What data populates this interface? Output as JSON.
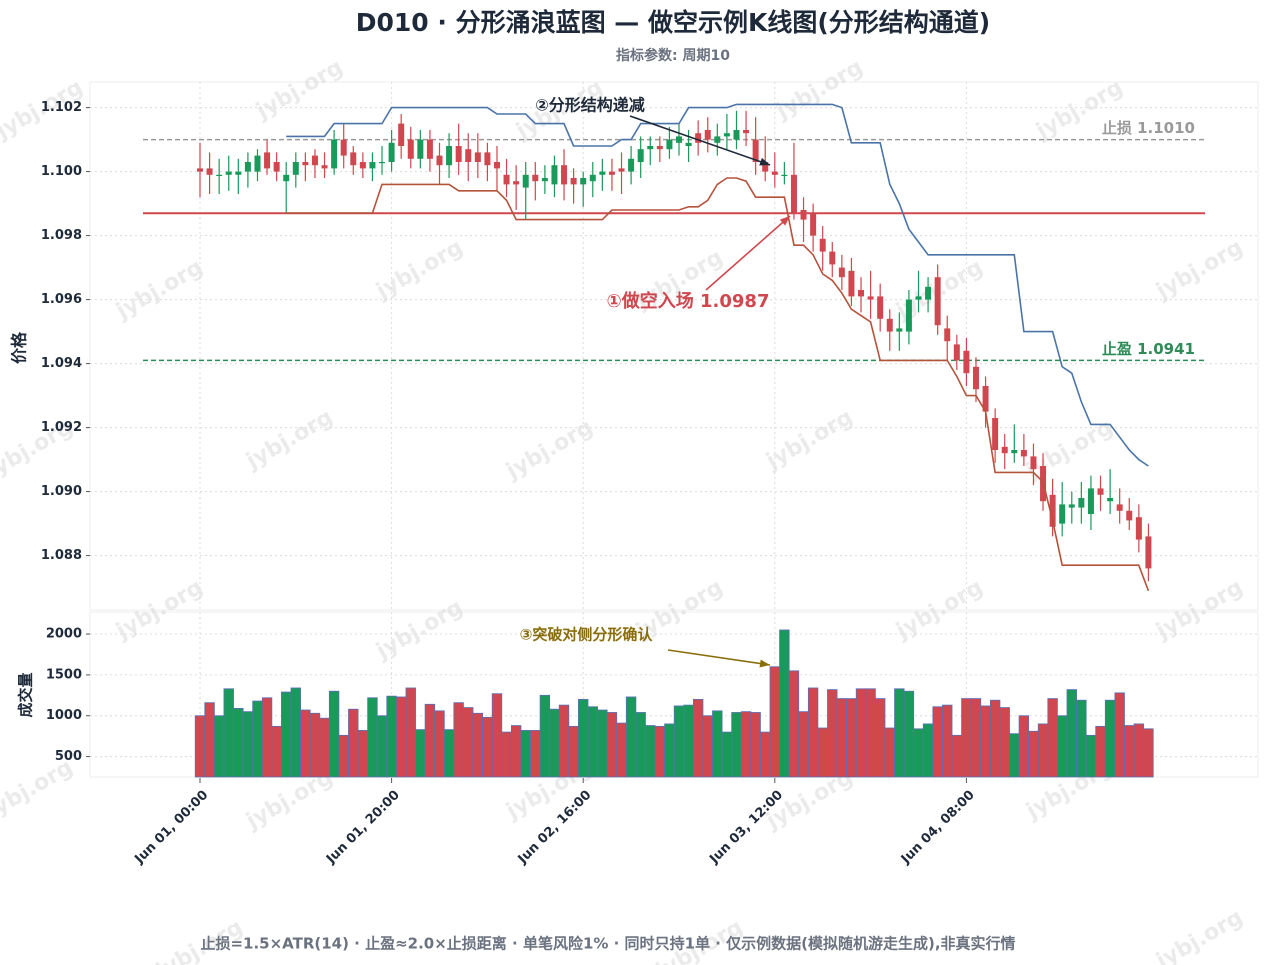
{
  "chart_data": {
    "type": "candlestick",
    "title": "D010 · 分形涌浪蓝图 — 做空示例K线图(分形结构通道)",
    "subtitle": "指标参数: 周期10",
    "ylabel": "价格",
    "volume_label": "成交量",
    "footer": "止损=1.5×ATR(14) · 止盈≈2.0×止损距离 · 单笔风险1% · 同时只持1单 · 仅示例数据(模拟随机游走生成),非真实行情",
    "watermark": "jybj.org",
    "up_color": "#1a9a5a",
    "down_color": "#d0474f",
    "grid": true,
    "x": [
      "Jun 01, 00:00",
      null,
      null,
      null,
      null,
      null,
      null,
      null,
      null,
      null,
      null,
      null,
      null,
      null,
      null,
      null,
      null,
      null,
      null,
      null,
      "Jun 01, 20:00",
      null,
      null,
      null,
      null,
      null,
      null,
      null,
      null,
      null,
      null,
      null,
      null,
      null,
      null,
      null,
      null,
      null,
      null,
      null,
      "Jun 02, 16:00",
      null,
      null,
      null,
      null,
      null,
      null,
      null,
      null,
      null,
      null,
      null,
      null,
      null,
      null,
      null,
      null,
      null,
      null,
      null,
      "Jun 03, 12:00",
      null,
      null,
      null,
      null,
      null,
      null,
      null,
      null,
      null,
      null,
      null,
      null,
      null,
      null,
      null,
      null,
      null,
      null,
      null,
      "Jun 04, 08:00",
      null,
      null,
      null,
      null,
      null,
      null,
      null,
      null,
      null,
      null,
      null,
      null,
      null,
      null,
      null,
      null,
      null,
      null,
      null
    ],
    "open": [
      1.1001,
      1.1001,
      1.0999,
      1.0999,
      1.0999,
      1.1,
      1.1,
      1.1006,
      1.1003,
      1.0997,
      1.0999,
      1.1003,
      1.1005,
      1.1002,
      1.1001,
      1.101,
      1.1006,
      1.1003,
      1.1001,
      1.1003,
      1.1003,
      1.1015,
      1.101,
      1.1004,
      1.101,
      1.1005,
      1.1002,
      1.1008,
      1.1007,
      1.1006,
      1.1006,
      1.1003,
      1.0999,
      1.0997,
      1.0995,
      1.0999,
      1.0997,
      1.0996,
      1.1002,
      1.0998,
      1.0996,
      1.0997,
      1.0999,
      1.1,
      1.1001,
      1.1,
      1.1003,
      1.1007,
      1.1008,
      1.1007,
      1.1009,
      1.1008,
      1.1012,
      1.1013,
      1.1009,
      1.1011,
      1.101,
      1.1013,
      1.101,
      1.1003,
      1.1,
      1.0999,
      1.0999,
      1.0988,
      1.0987,
      1.0979,
      1.0975,
      1.097,
      1.0969,
      1.0963,
      1.0961,
      1.0961,
      1.0954,
      1.095,
      1.095,
      1.096,
      1.096,
      1.0967,
      1.0951,
      1.0946,
      1.0944,
      1.0939,
      1.0933,
      1.0923,
      1.0914,
      1.0912,
      1.0913,
      1.0911,
      1.0908,
      1.0899,
      1.089,
      1.0895,
      1.0895,
      1.0893,
      1.0901,
      1.0897,
      1.0896,
      1.0894,
      1.0892,
      1.0886
    ],
    "close": [
      1.1,
      1.0999,
      1.0999,
      1.1,
      1.1,
      1.1003,
      1.1005,
      1.1001,
      1.1,
      1.0999,
      1.1003,
      1.1002,
      1.1002,
      1.1001,
      1.101,
      1.1005,
      1.1002,
      1.1001,
      1.1003,
      1.1003,
      1.1009,
      1.1008,
      1.1004,
      1.101,
      1.1004,
      1.1002,
      1.1008,
      1.1003,
      1.1003,
      1.1003,
      1.1002,
      1.1001,
      1.0996,
      1.0996,
      1.0999,
      1.0997,
      1.0998,
      1.1002,
      1.0996,
      1.0996,
      1.0998,
      1.0999,
      1.1,
      1.0999,
      1.1,
      1.1004,
      1.1007,
      1.1008,
      1.1007,
      1.101,
      1.1011,
      1.1009,
      1.1009,
      1.101,
      1.1011,
      1.1012,
      1.1013,
      1.1012,
      1.1003,
      1.1,
      1.0999,
      1.0999,
      1.0987,
      1.0985,
      1.098,
      1.0975,
      1.0971,
      1.0967,
      1.0961,
      1.0961,
      1.096,
      1.0954,
      1.095,
      1.0951,
      1.096,
      1.0961,
      1.0964,
      1.0952,
      1.0947,
      1.0941,
      1.0937,
      1.0932,
      1.0925,
      1.0913,
      1.0912,
      1.0913,
      1.0911,
      1.0907,
      1.0897,
      1.0889,
      1.0896,
      1.0896,
      1.0898,
      1.0901,
      1.0899,
      1.0898,
      1.0894,
      1.0891,
      1.0885,
      1.0876
    ],
    "high": [
      1.1009,
      1.1006,
      1.1004,
      1.1005,
      1.1004,
      1.1006,
      1.1007,
      1.101,
      1.1006,
      1.1003,
      1.1006,
      1.1006,
      1.1007,
      1.1006,
      1.1013,
      1.1015,
      1.1008,
      1.1006,
      1.1006,
      1.1008,
      1.1013,
      1.1018,
      1.1014,
      1.1013,
      1.1013,
      1.1009,
      1.1012,
      1.1015,
      1.1012,
      1.1012,
      1.1009,
      1.1008,
      1.1004,
      1.1002,
      1.1003,
      1.1003,
      1.1002,
      1.1005,
      1.1007,
      1.1001,
      1.1,
      1.1003,
      1.1004,
      1.1004,
      1.1006,
      1.1008,
      1.1011,
      1.1011,
      1.1011,
      1.1014,
      1.1015,
      1.1013,
      1.1016,
      1.1017,
      1.1015,
      1.1018,
      1.1019,
      1.1019,
      1.1017,
      1.1011,
      1.1006,
      1.1003,
      1.1009,
      1.0992,
      1.099,
      1.0983,
      1.0978,
      1.0974,
      1.0973,
      1.0967,
      1.0969,
      1.0965,
      1.0957,
      1.0956,
      1.0963,
      1.0969,
      1.0967,
      1.0971,
      1.0955,
      1.0949,
      1.0948,
      1.0942,
      1.0936,
      1.0926,
      1.0918,
      1.0921,
      1.0918,
      1.0915,
      1.0912,
      1.0904,
      1.0903,
      1.09,
      1.0903,
      1.0905,
      1.0905,
      1.0907,
      1.0901,
      1.0898,
      1.0896,
      1.089
    ],
    "low": [
      1.0992,
      1.0993,
      1.0993,
      1.0994,
      1.0993,
      1.0995,
      1.0997,
      1.0999,
      1.0997,
      1.0987,
      1.0995,
      1.0997,
      1.0998,
      1.0998,
      1.0999,
      1.1001,
      1.0999,
      1.0998,
      1.0997,
      1.0999,
      1.1,
      1.1004,
      1.1001,
      1.1001,
      1.1,
      1.0996,
      1.0998,
      1.0999,
      1.0997,
      1.0998,
      1.0997,
      1.0994,
      1.0992,
      1.0988,
      1.0985,
      1.0991,
      1.0993,
      1.0992,
      1.0991,
      1.099,
      1.0989,
      1.0992,
      1.0994,
      1.0994,
      1.0993,
      1.0996,
      1.0998,
      1.1002,
      1.1003,
      1.1004,
      1.1005,
      1.1003,
      1.1005,
      1.1006,
      1.1005,
      1.1007,
      1.1007,
      1.1008,
      1.0999,
      1.0997,
      1.0995,
      1.0996,
      1.0985,
      1.0978,
      1.0975,
      1.0969,
      1.0967,
      1.0963,
      1.0958,
      1.0956,
      1.0954,
      1.095,
      1.0944,
      1.0944,
      1.0946,
      1.0956,
      1.0956,
      1.0949,
      1.0941,
      1.0938,
      1.0933,
      1.0928,
      1.092,
      1.0909,
      1.0907,
      1.0909,
      1.0908,
      1.0902,
      1.0894,
      1.0886,
      1.0886,
      1.089,
      1.089,
      1.0888,
      1.0894,
      1.0893,
      1.089,
      1.0888,
      1.0881,
      1.0872
    ],
    "volume": [
      1000,
      1160,
      1000,
      1330,
      1090,
      1050,
      1180,
      1220,
      870,
      1290,
      1340,
      1070,
      1030,
      970,
      1300,
      760,
      1080,
      820,
      1220,
      1000,
      1240,
      1230,
      1340,
      830,
      1140,
      1060,
      830,
      1160,
      1100,
      1030,
      980,
      1270,
      800,
      880,
      820,
      820,
      1250,
      1080,
      1130,
      870,
      1200,
      1110,
      1070,
      1040,
      910,
      1230,
      1040,
      880,
      870,
      900,
      1120,
      1130,
      1200,
      1000,
      1060,
      800,
      1040,
      1050,
      1040,
      800,
      1600,
      2050,
      1550,
      1050,
      1340,
      850,
      1320,
      1210,
      1210,
      1330,
      1330,
      1210,
      850,
      1330,
      1300,
      840,
      900,
      1110,
      1130,
      760,
      1210,
      1210,
      1120,
      1190,
      1100,
      780,
      1000,
      810,
      900,
      1210,
      1000,
      1320,
      1190,
      760,
      870,
      1190,
      1280,
      880,
      900,
      840
    ],
    "upper_channel": {
      "color": "#4a74a8",
      "values": [
        null,
        null,
        null,
        null,
        null,
        null,
        null,
        null,
        null,
        1.1011,
        1.1011,
        1.1011,
        1.1011,
        1.1011,
        1.1015,
        1.1015,
        1.1015,
        1.1015,
        1.1015,
        1.1015,
        1.102,
        1.102,
        1.102,
        1.102,
        1.102,
        1.102,
        1.102,
        1.102,
        1.102,
        1.102,
        1.102,
        1.1018,
        1.1018,
        1.1018,
        1.1018,
        1.1015,
        1.1015,
        1.1015,
        1.1015,
        1.1008,
        1.1008,
        1.1008,
        1.1008,
        1.1008,
        1.101,
        1.101,
        1.1015,
        1.1015,
        1.1015,
        1.1015,
        1.1015,
        1.102,
        1.102,
        1.102,
        1.102,
        1.102,
        1.1021,
        1.1021,
        1.1021,
        1.1021,
        1.1021,
        1.1021,
        1.1021,
        1.1021,
        1.1021,
        1.1021,
        1.1021,
        1.102,
        1.1009,
        1.1009,
        1.1009,
        1.1009,
        1.0996,
        1.099,
        1.0982,
        1.0978,
        1.0974,
        1.0974,
        1.0974,
        1.0974,
        1.0974,
        1.0974,
        1.0974,
        1.0974,
        1.0974,
        1.0974,
        1.095,
        1.095,
        1.095,
        1.095,
        1.0939,
        1.0937,
        1.0928,
        1.0921,
        1.0921,
        1.0921,
        1.0917,
        1.0913,
        1.091,
        1.0908
      ]
    },
    "lower_channel": {
      "color": "#b5523b",
      "values": [
        null,
        null,
        null,
        null,
        null,
        null,
        null,
        null,
        null,
        1.0987,
        1.0987,
        1.0987,
        1.0987,
        1.0987,
        1.0987,
        1.0987,
        1.0987,
        1.0987,
        1.0987,
        1.0996,
        1.0996,
        1.0996,
        1.0996,
        1.0996,
        1.0996,
        1.0996,
        1.0996,
        1.0994,
        1.0994,
        1.0994,
        1.0994,
        1.0994,
        1.0991,
        1.0985,
        1.0985,
        1.0985,
        1.0985,
        1.0985,
        1.0985,
        1.0985,
        1.0985,
        1.0985,
        1.0985,
        1.0988,
        1.0988,
        1.0988,
        1.0988,
        1.0988,
        1.0988,
        1.0988,
        1.0988,
        1.0989,
        1.0989,
        1.0991,
        1.0996,
        1.0998,
        1.0998,
        1.0997,
        1.0992,
        1.0992,
        1.0992,
        1.0992,
        1.0977,
        1.0977,
        1.0974,
        1.0968,
        1.0966,
        1.0962,
        1.0957,
        1.0955,
        1.0953,
        1.0941,
        1.0941,
        1.0941,
        1.0941,
        1.0941,
        1.0941,
        1.0941,
        1.0941,
        1.0936,
        1.093,
        1.093,
        1.0925,
        1.0906,
        1.0906,
        1.0906,
        1.0906,
        1.0906,
        1.0903,
        1.0891,
        1.0877,
        1.0877,
        1.0877,
        1.0877,
        1.0877,
        1.0877,
        1.0877,
        1.0877,
        1.0877,
        1.0869
      ]
    },
    "levels": [
      {
        "label": "止损 1.1010",
        "value": 1.101,
        "color": "#9a9a9a",
        "dashed": true
      },
      {
        "label": "止盈 1.0941",
        "value": 1.0941,
        "color": "#2e8b57",
        "dashed": true
      },
      {
        "value": 1.0987,
        "color": "#d0474f",
        "dashed": false
      }
    ],
    "annotations": [
      {
        "text": "①做空入场 1.0987",
        "color": "#d0474f"
      },
      {
        "text": "②分形结构递减",
        "color": "#1e2a3a"
      },
      {
        "text": "③突破对侧分形确认",
        "color": "#8a6d0b"
      }
    ],
    "ylim": [
      1.0863,
      1.1028
    ],
    "yticks": [
      1.088,
      {
        "value": 1.09,
        "label": "1.090"
      },
      1.092,
      1.094,
      1.096,
      1.098,
      {
        "value": 1.1,
        "label": "1.100"
      },
      1.102
    ],
    "volume_ylim": [
      250,
      2270
    ],
    "volume_yticks": [
      500,
      1000,
      1500,
      2000
    ]
  }
}
